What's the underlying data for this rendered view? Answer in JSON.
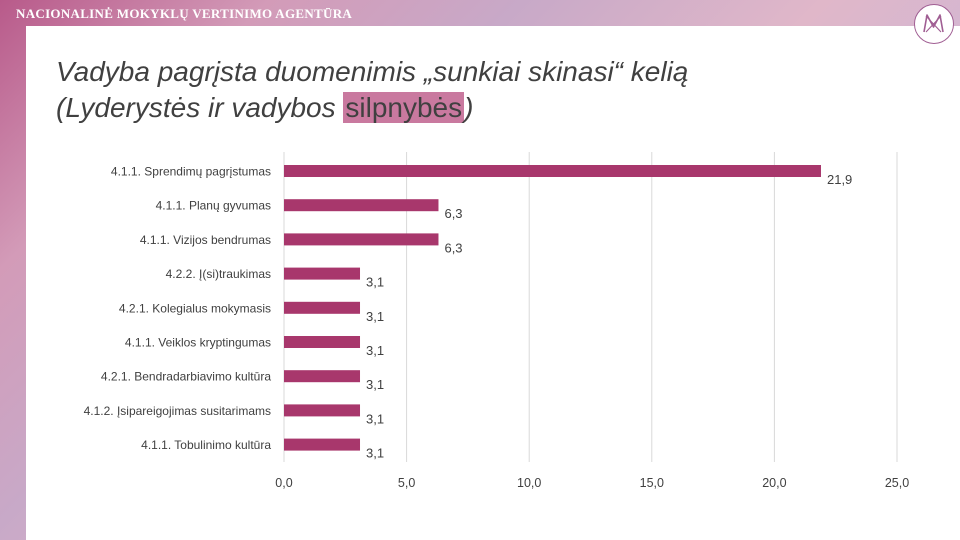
{
  "header": {
    "agency_name": "NACIONALINĖ MOKYKLŲ VERTINIMO AGENTŪRA",
    "logo_icon": "nmva-logo-icon"
  },
  "slide": {
    "title_line1": "Vadyba pagrįsta duomenimis „sunkiai skinasi“ kelią",
    "title_line2_prefix": "(Lyderystės ir vadybos ",
    "title_line2_highlight": "silpnybės",
    "title_line2_suffix": ")"
  },
  "colors": {
    "bar": "#a8376c",
    "gridline": "#d9d9d9",
    "highlight": "#c9799f",
    "frame": "#c07aa3"
  },
  "chart_data": {
    "type": "bar",
    "orientation": "horizontal",
    "categories": [
      "4.1.1. Sprendimų pagrįstumas",
      "4.1.1. Planų gyvumas",
      "4.1.1. Vizijos bendrumas",
      "4.2.2. Į(si)traukimas",
      "4.2.1. Kolegialus mokymasis",
      "4.1.1. Veiklos kryptingumas",
      "4.2.1. Bendradarbiavimo kultūra",
      "4.1.2. Įsipareigojimas susitarimams",
      "4.1.1. Tobulinimo kultūra"
    ],
    "values": [
      21.9,
      6.3,
      6.3,
      3.1,
      3.1,
      3.1,
      3.1,
      3.1,
      3.1
    ],
    "value_labels": [
      "21,9",
      "6,3",
      "6,3",
      "3,1",
      "3,1",
      "3,1",
      "3,1",
      "3,1",
      "3,1"
    ],
    "xlim": [
      0,
      25
    ],
    "x_ticks": [
      0,
      5,
      10,
      15,
      20,
      25
    ],
    "x_tick_labels": [
      "0,0",
      "5,0",
      "10,0",
      "15,0",
      "20,0",
      "25,0"
    ],
    "grid": true,
    "legend": "none"
  }
}
